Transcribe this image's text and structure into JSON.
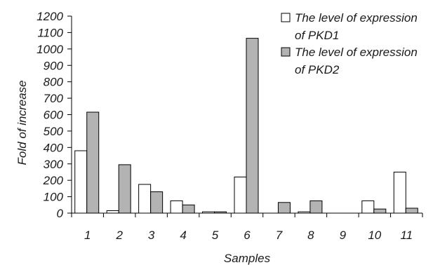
{
  "chart_data": {
    "type": "bar",
    "xlabel": "Samples",
    "ylabel": "Fold of increase",
    "ylim": [
      0,
      1200
    ],
    "ytick_step": 100,
    "categories": [
      "1",
      "2",
      "3",
      "4",
      "5",
      "6",
      "7",
      "8",
      "9",
      "10",
      "11"
    ],
    "series": [
      {
        "name": "The level of expression of PKD1",
        "color": "#ffffff",
        "values": [
          380,
          15,
          175,
          75,
          8,
          220,
          0,
          8,
          0,
          75,
          250
        ]
      },
      {
        "name": "The level of expression of PKD2",
        "color": "#b3b3b3",
        "values": [
          615,
          295,
          130,
          50,
          8,
          1065,
          65,
          75,
          0,
          25,
          30
        ]
      }
    ],
    "legend": {
      "placement": "top-right",
      "entries": [
        {
          "line1": "The level of expression",
          "line2": "of PKD1"
        },
        {
          "line1": "The level of expression",
          "line2": "of PKD2"
        }
      ]
    },
    "grid": false
  }
}
